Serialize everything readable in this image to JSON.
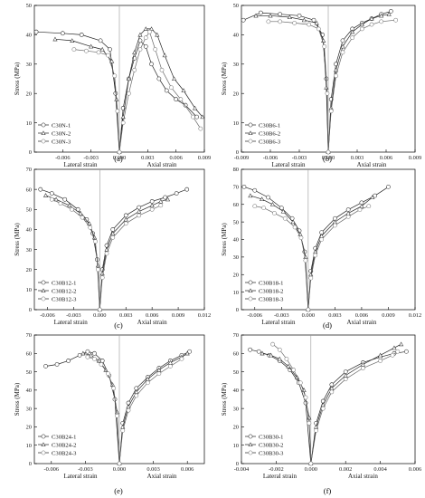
{
  "figure": {
    "panels": [
      {
        "label": "(a)",
        "ylabel": "Stress (MPa)",
        "xlabel_left": "Lateral strain",
        "xlabel_right": "Axial strain"
      },
      {
        "label": "(b)",
        "ylabel": "Stress (MPa)",
        "xlabel_left": "Lateral strain",
        "xlabel_right": "Axial strain"
      },
      {
        "label": "(c)",
        "ylabel": "Stress (MPa)",
        "xlabel_left": "Lateral strain",
        "xlabel_right": "Axial strain"
      },
      {
        "label": "(d)",
        "ylabel": "Stress (MPa)",
        "xlabel_left": "Lateral strain",
        "xlabel_right": "Axial strain"
      },
      {
        "label": "(e)",
        "ylabel": "Stress (MPa)",
        "xlabel_left": "Lateral strain",
        "xlabel_right": "Axial strain"
      },
      {
        "label": "(f)",
        "ylabel": "Stress (MPa)",
        "xlabel_left": "Lateral strain",
        "xlabel_right": "Axial strain"
      }
    ]
  },
  "chart_data": [
    {
      "type": "line",
      "panel": "(a)",
      "xlabel": "Lateral strain / Axial strain",
      "ylabel": "Stress (MPa)",
      "xlim": [
        -0.009,
        0.009
      ],
      "ylim": [
        0,
        50
      ],
      "xticks": [
        -0.006,
        -0.003,
        0,
        0.003,
        0.006,
        0.009
      ],
      "xtick_labels": [
        "-0.006",
        "-0.003",
        "0.000",
        "0.003",
        "0.006",
        "0.009"
      ],
      "yticks": [
        0,
        10,
        20,
        30,
        40,
        50
      ],
      "ytick_labels": [
        "0",
        "10",
        "20",
        "30",
        "40",
        "50"
      ],
      "legend": {
        "position": "lower-left",
        "entries": [
          "C30N-1",
          "C30N-2",
          "C30N-3"
        ]
      },
      "series": [
        {
          "name": "C30N-1",
          "marker": "circle",
          "x": [
            -0.0088,
            -0.006,
            -0.004,
            -0.002,
            -0.001,
            -0.0004,
            0,
            0.0004,
            0.001,
            0.0016,
            0.0022,
            0.0028,
            0.0034,
            0.0042,
            0.005,
            0.006,
            0.007,
            0.0082
          ],
          "y": [
            41,
            40.5,
            40,
            38,
            35,
            20,
            0,
            15,
            25,
            32,
            38,
            36,
            30,
            25,
            21,
            18,
            16,
            12
          ]
        },
        {
          "name": "C30N-2",
          "marker": "triangle",
          "x": [
            -0.0068,
            -0.005,
            -0.003,
            -0.0018,
            -0.0008,
            -0.0003,
            0,
            0.0004,
            0.001,
            0.0016,
            0.0022,
            0.0028,
            0.0034,
            0.004,
            0.0048,
            0.0058,
            0.0068,
            0.008,
            0.0088
          ],
          "y": [
            38.5,
            38,
            36,
            35,
            31,
            18,
            0,
            12,
            25,
            34,
            40,
            42,
            42,
            40,
            33,
            25,
            21,
            15,
            12
          ]
        },
        {
          "name": "C30N-3",
          "marker": "circle-light",
          "x": [
            -0.0048,
            -0.0035,
            -0.0022,
            -0.0012,
            -0.0005,
            -0.0002,
            0,
            0.0004,
            0.001,
            0.0016,
            0.0022,
            0.0028,
            0.0032,
            0.0038,
            0.0045,
            0.0055,
            0.0065,
            0.0078,
            0.0086
          ],
          "y": [
            35,
            34.5,
            34,
            33,
            26,
            14,
            0,
            10,
            20,
            28,
            35,
            39,
            41,
            35,
            28,
            22,
            18,
            12,
            8
          ]
        }
      ]
    },
    {
      "type": "line",
      "panel": "(b)",
      "xlabel": "Lateral strain / Axial strain",
      "ylabel": "Stress (MPa)",
      "xlim": [
        -0.009,
        0.009
      ],
      "ylim": [
        0,
        50
      ],
      "xticks": [
        -0.009,
        -0.006,
        -0.003,
        0,
        0.003,
        0.006,
        0.009
      ],
      "xtick_labels": [
        "-0.009",
        "-0.006",
        "-0.003",
        "0.000",
        "0.003",
        "0.006",
        "0.009"
      ],
      "yticks": [
        0,
        10,
        20,
        30,
        40,
        50
      ],
      "ytick_labels": [
        "0",
        "10",
        "20",
        "30",
        "40",
        "50"
      ],
      "legend": {
        "position": "lower-left",
        "entries": [
          "C30B6-1",
          "C30B6-2",
          "C30B6-3"
        ]
      },
      "series": [
        {
          "name": "C30B6-1",
          "marker": "circle",
          "x": [
            -0.0088,
            -0.007,
            -0.005,
            -0.003,
            -0.0015,
            -0.0006,
            -0.0002,
            0,
            0.0003,
            0.0008,
            0.0015,
            0.0025,
            0.0035,
            0.0045,
            0.0055,
            0.0065
          ],
          "y": [
            45,
            47.5,
            47,
            46.5,
            45,
            40,
            25,
            0,
            18,
            30,
            38,
            42,
            44,
            45.5,
            47,
            48
          ]
        },
        {
          "name": "C30B6-2",
          "marker": "triangle",
          "x": [
            -0.0075,
            -0.006,
            -0.004,
            -0.0025,
            -0.0012,
            -0.0005,
            -0.0002,
            0,
            0.0003,
            0.0008,
            0.0015,
            0.0025,
            0.0035,
            0.0045,
            0.0055,
            0.0063
          ],
          "y": [
            46.5,
            46.5,
            46,
            45,
            44,
            38,
            22,
            0,
            15,
            28,
            36,
            41,
            43.5,
            45.5,
            46.5,
            47
          ]
        },
        {
          "name": "C30B6-3",
          "marker": "circle-light",
          "x": [
            -0.0062,
            -0.005,
            -0.0035,
            -0.002,
            -0.001,
            -0.0004,
            -0.0001,
            0,
            0.0003,
            0.0008,
            0.0015,
            0.0025,
            0.0035,
            0.0045,
            0.0055,
            0.007
          ],
          "y": [
            44.5,
            44.5,
            44,
            43.5,
            42,
            36,
            20,
            0,
            14,
            26,
            34,
            39,
            42,
            43.5,
            44.5,
            45
          ]
        }
      ]
    },
    {
      "type": "line",
      "panel": "(c)",
      "xlabel": "Lateral strain / Axial strain",
      "ylabel": "Stress (MPa)",
      "xlim": [
        -0.0075,
        0.012
      ],
      "ylim": [
        0,
        70
      ],
      "xticks": [
        -0.006,
        -0.003,
        0,
        0.003,
        0.006,
        0.009,
        0.012
      ],
      "xtick_labels": [
        "-0.006",
        "-0.003",
        "0.000",
        "0.003",
        "0.006",
        "0.009",
        "0.012"
      ],
      "yticks": [
        0,
        10,
        20,
        30,
        40,
        50,
        60,
        70
      ],
      "ytick_labels": [
        "0",
        "10",
        "20",
        "30",
        "40",
        "50",
        "60",
        "70"
      ],
      "legend": {
        "position": "lower-left",
        "entries": [
          "C30B12-1",
          "C30B12-2",
          "C30B12-3"
        ]
      },
      "series": [
        {
          "name": "C30B12-1",
          "marker": "circle",
          "x": [
            -0.0068,
            -0.0055,
            -0.004,
            -0.0025,
            -0.0015,
            -0.0008,
            -0.0003,
            0,
            0.0003,
            0.0008,
            0.0015,
            0.003,
            0.0045,
            0.006,
            0.0075,
            0.0088,
            0.01
          ],
          "y": [
            60,
            58,
            55,
            50,
            45,
            38,
            25,
            0,
            20,
            32,
            40,
            47,
            51,
            54,
            56,
            58,
            60
          ]
        },
        {
          "name": "C30B12-2",
          "marker": "triangle",
          "x": [
            -0.0062,
            -0.005,
            -0.0035,
            -0.0022,
            -0.0012,
            -0.0006,
            -0.0002,
            0,
            0.0003,
            0.0008,
            0.0015,
            0.003,
            0.0045,
            0.006,
            0.007,
            0.0078
          ],
          "y": [
            57,
            55,
            52,
            48,
            43,
            36,
            22,
            0,
            18,
            30,
            38,
            45,
            49,
            52,
            54,
            55
          ]
        },
        {
          "name": "C30B12-3",
          "marker": "circle-light",
          "x": [
            -0.0055,
            -0.0045,
            -0.0032,
            -0.002,
            -0.0011,
            -0.0005,
            -0.0002,
            0,
            0.0003,
            0.0008,
            0.0015,
            0.003,
            0.0045,
            0.006,
            0.007
          ],
          "y": [
            55,
            53,
            50,
            46,
            41,
            34,
            20,
            0,
            16,
            28,
            36,
            43,
            47,
            50,
            52
          ]
        }
      ]
    },
    {
      "type": "line",
      "panel": "(d)",
      "xlabel": "Lateral strain / Axial strain",
      "ylabel": "Stress (MPa)",
      "xlim": [
        -0.0075,
        0.012
      ],
      "ylim": [
        0,
        80
      ],
      "xticks": [
        -0.006,
        -0.003,
        0,
        0.003,
        0.006,
        0.009,
        0.012
      ],
      "xtick_labels": [
        "-0.006",
        "-0.003",
        "0.000",
        "0.003",
        "0.006",
        "0.009",
        "0.012"
      ],
      "yticks": [
        0,
        10,
        20,
        30,
        40,
        50,
        60,
        70,
        80
      ],
      "ytick_labels": [
        "0",
        "10",
        "20",
        "30",
        "40",
        "50",
        "60",
        "70",
        "80"
      ],
      "legend": {
        "position": "lower-left",
        "entries": [
          "C30B18-1",
          "C30B18-2",
          "C30B18-3"
        ]
      },
      "series": [
        {
          "name": "C30B18-1",
          "marker": "circle",
          "x": [
            -0.0072,
            -0.006,
            -0.0045,
            -0.003,
            -0.0018,
            -0.001,
            -0.0004,
            0,
            0.0003,
            0.0008,
            0.0015,
            0.003,
            0.0045,
            0.006,
            0.0075,
            0.009
          ],
          "y": [
            70,
            68,
            64,
            58,
            52,
            45,
            33,
            0,
            22,
            35,
            44,
            52,
            57,
            61,
            65,
            70
          ]
        },
        {
          "name": "C30B18-2",
          "marker": "triangle",
          "x": [
            -0.0065,
            -0.0052,
            -0.004,
            -0.0028,
            -0.0017,
            -0.0009,
            -0.0003,
            0,
            0.0003,
            0.0008,
            0.0015,
            0.003,
            0.0045,
            0.006,
            0.0072
          ],
          "y": [
            65,
            63,
            60,
            56,
            50,
            43,
            30,
            0,
            20,
            33,
            42,
            50,
            55,
            59,
            64
          ]
        },
        {
          "name": "C30B18-3",
          "marker": "circle-light",
          "x": [
            -0.006,
            -0.005,
            -0.0038,
            -0.0026,
            -0.0015,
            -0.0008,
            -0.0003,
            0,
            0.0003,
            0.0008,
            0.0015,
            0.003,
            0.0045,
            0.0058,
            0.0068
          ],
          "y": [
            59,
            58,
            55,
            52,
            47,
            41,
            28,
            0,
            18,
            31,
            40,
            48,
            53,
            57,
            59
          ]
        }
      ]
    },
    {
      "type": "line",
      "panel": "(e)",
      "xlabel": "Lateral strain / Axial strain",
      "ylabel": "Stress (MPa)",
      "xlim": [
        -0.0075,
        0.0075
      ],
      "ylim": [
        0,
        70
      ],
      "xticks": [
        -0.006,
        -0.003,
        0,
        0.003,
        0.006
      ],
      "xtick_labels": [
        "-0.006",
        "-0.003",
        "0.000",
        "0.003",
        "0.006"
      ],
      "yticks": [
        0,
        10,
        20,
        30,
        40,
        50,
        60,
        70
      ],
      "ytick_labels": [
        "0",
        "10",
        "20",
        "30",
        "40",
        "50",
        "60",
        "70"
      ],
      "legend": {
        "position": "lower-left",
        "entries": [
          "C30B24-1",
          "C30B24-2",
          "C30B24-3"
        ]
      },
      "series": [
        {
          "name": "C30B24-1",
          "marker": "circle",
          "x": [
            -0.0065,
            -0.0055,
            -0.0045,
            -0.0035,
            -0.0028,
            -0.0022,
            -0.0015,
            -0.0009,
            -0.0004,
            0,
            0.0003,
            0.0008,
            0.0015,
            0.0025,
            0.0035,
            0.0045,
            0.0055,
            0.0062
          ],
          "y": [
            53,
            54,
            56,
            59,
            61,
            60,
            56,
            48,
            35,
            0,
            22,
            33,
            41,
            47,
            52,
            56,
            59,
            61
          ]
        },
        {
          "name": "C30B24-2",
          "marker": "triangle",
          "x": [
            -0.0032,
            -0.0025,
            -0.0018,
            -0.0012,
            -0.0006,
            -0.0002,
            0,
            0.0003,
            0.0008,
            0.0015,
            0.0025,
            0.0035,
            0.0045,
            0.0055,
            0.006
          ],
          "y": [
            60,
            59,
            56,
            51,
            43,
            28,
            0,
            20,
            31,
            39,
            46,
            51,
            55,
            58,
            60
          ]
        },
        {
          "name": "C30B24-3",
          "marker": "circle-light",
          "x": [
            -0.0028,
            -0.0022,
            -0.0016,
            -0.001,
            -0.0005,
            -0.0002,
            0,
            0.0003,
            0.0008,
            0.0015,
            0.0025,
            0.0035,
            0.0045,
            0.0055
          ],
          "y": [
            58,
            57,
            54,
            49,
            41,
            26,
            0,
            18,
            29,
            37,
            44,
            49,
            53,
            57
          ]
        }
      ]
    },
    {
      "type": "line",
      "panel": "(f)",
      "xlabel": "Lateral strain / Axial strain",
      "ylabel": "Stress (MPa)",
      "xlim": [
        -0.004,
        0.006
      ],
      "ylim": [
        0,
        70
      ],
      "xticks": [
        -0.004,
        -0.002,
        0,
        0.002,
        0.004,
        0.006
      ],
      "xtick_labels": [
        "-0.004",
        "-0.002",
        "0.000",
        "0.002",
        "0.004",
        "0.006"
      ],
      "yticks": [
        0,
        10,
        20,
        30,
        40,
        50,
        60,
        70
      ],
      "ytick_labels": [
        "0",
        "10",
        "20",
        "30",
        "40",
        "50",
        "60",
        "70"
      ],
      "legend": {
        "position": "lower-left",
        "entries": [
          "C30B30-1",
          "C30B30-2",
          "C30B30-3"
        ]
      },
      "series": [
        {
          "name": "C30B30-1",
          "marker": "circle",
          "x": [
            -0.0035,
            -0.003,
            -0.0024,
            -0.0018,
            -0.0012,
            -0.0007,
            -0.0003,
            0,
            0.0003,
            0.0007,
            0.0012,
            0.002,
            0.003,
            0.004,
            0.0048,
            0.0055
          ],
          "y": [
            62,
            61,
            59,
            56,
            51,
            44,
            33,
            0,
            22,
            34,
            43,
            50,
            55,
            58,
            60,
            61
          ]
        },
        {
          "name": "C30B30-2",
          "marker": "triangle",
          "x": [
            -0.0028,
            -0.0023,
            -0.0018,
            -0.0013,
            -0.0008,
            -0.0004,
            -0.0001,
            0,
            0.0003,
            0.0007,
            0.0012,
            0.002,
            0.003,
            0.004,
            0.0048,
            0.0052
          ],
          "y": [
            60,
            59,
            57,
            53,
            47,
            40,
            25,
            0,
            20,
            32,
            41,
            48,
            54,
            59,
            63,
            65
          ]
        },
        {
          "name": "C30B30-3",
          "marker": "circle-light",
          "x": [
            -0.0022,
            -0.0018,
            -0.0014,
            -0.001,
            -0.0006,
            -0.0003,
            -0.0001,
            0,
            0.0003,
            0.0007,
            0.0012,
            0.002,
            0.003,
            0.004,
            0.0047,
            0.005
          ],
          "y": [
            65,
            62,
            57,
            51,
            44,
            36,
            22,
            0,
            18,
            30,
            39,
            46,
            52,
            56,
            59,
            61
          ]
        }
      ]
    }
  ]
}
